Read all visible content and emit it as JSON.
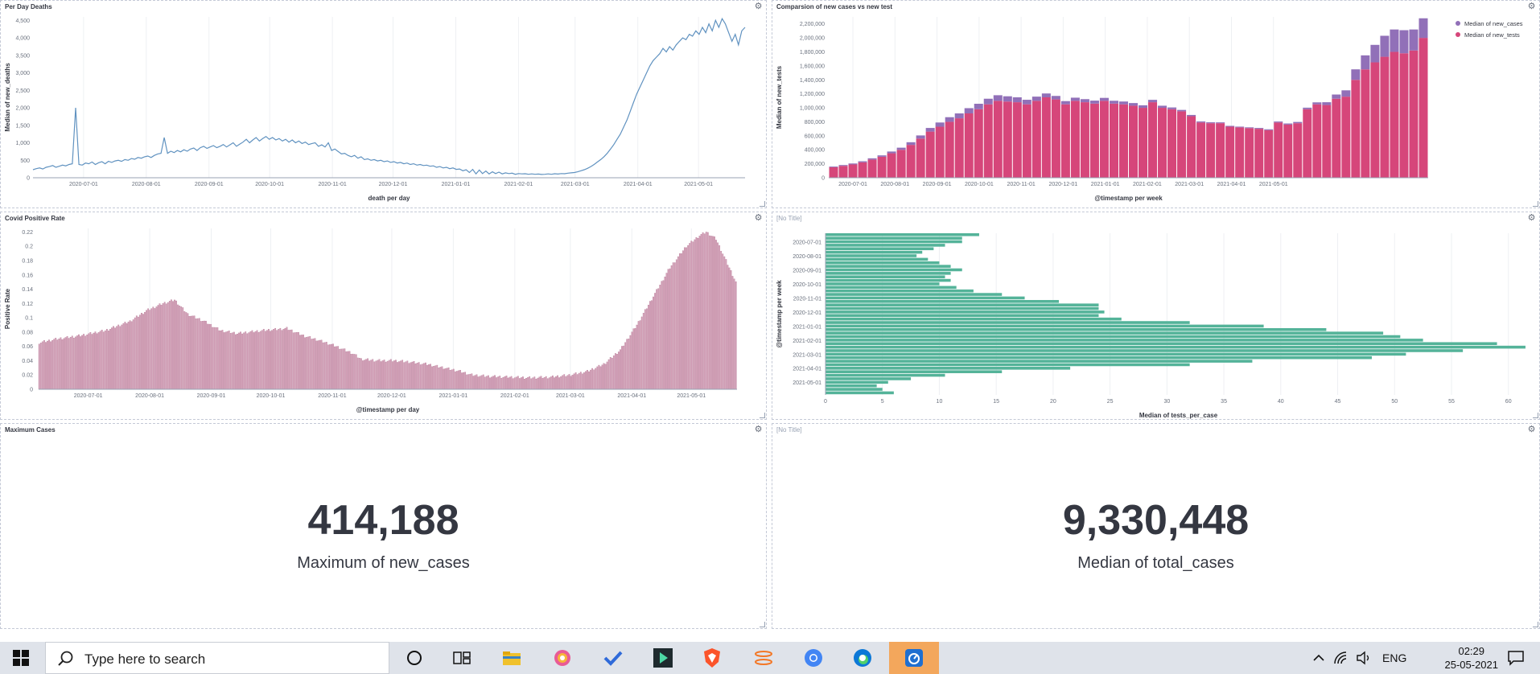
{
  "panels": {
    "deaths": {
      "title": "Per Day Deaths",
      "xlabel": "death per day",
      "ylabel": "Median of new_deaths"
    },
    "cases_tests": {
      "title": "Comparsion of new cases vs new test",
      "xlabel": "@timestamp per week",
      "ylabel": "Median of new_tests",
      "legend": [
        "Median of new_cases",
        "Median of new_tests"
      ]
    },
    "positive_rate": {
      "title": "Covid Positive Rate",
      "xlabel": "@timestamp per day",
      "ylabel": "Positive Rate"
    },
    "tests_per_case": {
      "title": "[No Title]",
      "xlabel": "Median of tests_per_case",
      "ylabel": "@timestamp per week"
    },
    "max_cases": {
      "title": "Maximum Cases",
      "value": "414,188",
      "label": "Maximum of new_cases"
    },
    "median_total": {
      "title": "[No Title]",
      "value": "9,330,448",
      "label": "Median of total_cases"
    }
  },
  "colors": {
    "line": "#6092c0",
    "tests": "#d6467a",
    "cases": "#9170b8",
    "rate": "#d4a0b8",
    "hbar": "#54b399",
    "grid": "#eef0f3"
  },
  "chart_data": [
    {
      "id": "deaths",
      "type": "line",
      "title": "Per Day Deaths",
      "xlabel": "death per day",
      "ylabel": "Median of new_deaths",
      "xticks": [
        "2020-07-01",
        "2020-08-01",
        "2020-09-01",
        "2020-10-01",
        "2020-11-01",
        "2020-12-01",
        "2021-01-01",
        "2021-02-01",
        "2021-03-01",
        "2021-04-01",
        "2021-05-01"
      ],
      "yticks": [
        "0",
        "500",
        "1,000",
        "1,500",
        "2,000",
        "2,500",
        "3,000",
        "3,500",
        "4,000",
        "4,500"
      ],
      "ylim": [
        0,
        4600
      ],
      "x_start": "2020-06-06",
      "x_end": "2021-05-24",
      "series": [
        {
          "values": [
            230,
            260,
            280,
            250,
            300,
            320,
            350,
            300,
            330,
            360,
            340,
            380,
            400,
            2000,
            380,
            360,
            420,
            400,
            450,
            380,
            430,
            460,
            400,
            470,
            440,
            480,
            500,
            470,
            520,
            500,
            550,
            530,
            580,
            560,
            600,
            620,
            580,
            640,
            680,
            700,
            1150,
            700,
            760,
            720,
            780,
            740,
            800,
            760,
            820,
            850,
            780,
            860,
            900,
            840,
            880,
            920,
            860,
            900,
            950,
            880,
            940,
            1000,
            900,
            960,
            1020,
            1100,
            1000,
            1080,
            1150,
            1050,
            1120,
            1180,
            1100,
            1150,
            1080,
            1120,
            1050,
            1100,
            1020,
            1080,
            1000,
            1050,
            980,
            1020,
            950,
            980,
            1000,
            900,
            940,
            880,
            1000,
            780,
            820,
            750,
            680,
            700,
            640,
            600,
            640,
            560,
            600,
            520,
            540,
            500,
            520,
            480,
            500,
            460,
            480,
            440,
            460,
            420,
            440,
            400,
            420,
            380,
            400,
            360,
            380,
            350,
            360,
            330,
            340,
            300,
            320,
            280,
            300,
            260,
            280,
            240,
            250,
            200,
            230,
            150,
            240,
            110,
            220,
            120,
            190,
            110,
            170,
            120,
            160,
            110,
            140,
            120,
            130,
            100,
            120,
            110,
            115,
            100,
            110,
            100,
            105,
            95,
            100,
            110,
            100,
            115,
            105,
            120,
            115,
            130,
            140,
            150,
            170,
            200,
            230,
            270,
            320,
            380,
            450,
            520,
            600,
            700,
            820,
            950,
            1100,
            1250,
            1450,
            1650,
            1900,
            2150,
            2400,
            2600,
            2800,
            3000,
            3200,
            3350,
            3450,
            3550,
            3700,
            3600,
            3750,
            3650,
            3800,
            3900,
            4000,
            3950,
            4100,
            4050,
            4200,
            4100,
            4300,
            4150,
            4400,
            4200,
            4500,
            4300,
            4550,
            4400,
            4150,
            3900,
            4100,
            3800,
            4200,
            4300
          ]
        }
      ]
    },
    {
      "id": "cases_tests",
      "type": "bar",
      "stacked": true,
      "title": "Comparsion of new cases vs new test",
      "xlabel": "@timestamp per week",
      "ylabel": "Median of new_tests",
      "xticks": [
        "2020-07-01",
        "2020-08-01",
        "2020-09-01",
        "2020-10-01",
        "2020-11-01",
        "2020-12-01",
        "2021-01-01",
        "2021-02-01",
        "2021-03-01",
        "2021-04-01",
        "2021-05-01"
      ],
      "yticks": [
        "0",
        "200,000",
        "400,000",
        "600,000",
        "800,000",
        "1,000,000",
        "1,200,000",
        "1,400,000",
        "1,600,000",
        "1,800,000",
        "2,000,000",
        "2,200,000"
      ],
      "ylim": [
        0,
        2300000
      ],
      "legend": [
        "Median of new_cases",
        "Median of new_tests"
      ],
      "series": [
        {
          "name": "Median of new_tests",
          "values": [
            150000,
            170000,
            190000,
            220000,
            260000,
            300000,
            350000,
            400000,
            470000,
            560000,
            660000,
            730000,
            800000,
            850000,
            920000,
            980000,
            1050000,
            1100000,
            1090000,
            1080000,
            1050000,
            1100000,
            1150000,
            1120000,
            1050000,
            1100000,
            1080000,
            1060000,
            1100000,
            1060000,
            1050000,
            1030000,
            1000000,
            1080000,
            1000000,
            980000,
            950000,
            880000,
            790000,
            780000,
            780000,
            730000,
            720000,
            710000,
            700000,
            680000,
            790000,
            760000,
            780000,
            980000,
            1050000,
            1040000,
            1130000,
            1160000,
            1400000,
            1550000,
            1650000,
            1730000,
            1800000,
            1780000,
            1820000,
            2000000
          ]
        },
        {
          "name": "Median of new_cases",
          "values": [
            10000,
            12000,
            14000,
            16000,
            18000,
            20000,
            25000,
            30000,
            38000,
            45000,
            52000,
            60000,
            66000,
            70000,
            75000,
            78000,
            80000,
            80000,
            75000,
            70000,
            65000,
            60000,
            55000,
            50000,
            46000,
            45000,
            44000,
            43000,
            42000,
            41000,
            40000,
            38000,
            36000,
            34000,
            30000,
            25000,
            20000,
            18000,
            15000,
            13000,
            12000,
            12000,
            11000,
            11000,
            12000,
            13000,
            14000,
            16000,
            18000,
            22000,
            28000,
            40000,
            60000,
            90000,
            150000,
            200000,
            250000,
            300000,
            320000,
            330000,
            300000,
            280000
          ]
        }
      ]
    },
    {
      "id": "positive_rate",
      "type": "bar",
      "title": "Covid Positive Rate",
      "xlabel": "@timestamp per day",
      "ylabel": "Positive Rate",
      "xticks": [
        "2020-07-01",
        "2020-08-01",
        "2020-09-01",
        "2020-10-01",
        "2020-11-01",
        "2020-12-01",
        "2021-01-01",
        "2021-02-01",
        "2021-03-01",
        "2021-04-01",
        "2021-05-01"
      ],
      "yticks": [
        "0",
        "0.02",
        "0.04",
        "0.06",
        "0.08",
        "0.1",
        "0.12",
        "0.14",
        "0.16",
        "0.18",
        "0.2",
        "0.22"
      ],
      "ylim": [
        0,
        0.225
      ],
      "x_start": "2020-06-06",
      "x_end": "2021-05-24",
      "anchors": [
        [
          0,
          0.065
        ],
        [
          10,
          0.07
        ],
        [
          25,
          0.075
        ],
        [
          40,
          0.082
        ],
        [
          55,
          0.095
        ],
        [
          65,
          0.11
        ],
        [
          75,
          0.12
        ],
        [
          82,
          0.125
        ],
        [
          90,
          0.105
        ],
        [
          100,
          0.095
        ],
        [
          110,
          0.082
        ],
        [
          120,
          0.078
        ],
        [
          135,
          0.082
        ],
        [
          150,
          0.085
        ],
        [
          160,
          0.075
        ],
        [
          170,
          0.068
        ],
        [
          180,
          0.06
        ],
        [
          190,
          0.05
        ],
        [
          195,
          0.042
        ],
        [
          205,
          0.04
        ],
        [
          215,
          0.04
        ],
        [
          225,
          0.038
        ],
        [
          235,
          0.035
        ],
        [
          245,
          0.03
        ],
        [
          255,
          0.025
        ],
        [
          262,
          0.02
        ],
        [
          272,
          0.018
        ],
        [
          285,
          0.017
        ],
        [
          297,
          0.016
        ],
        [
          310,
          0.017
        ],
        [
          322,
          0.02
        ],
        [
          332,
          0.025
        ],
        [
          342,
          0.035
        ],
        [
          352,
          0.055
        ],
        [
          362,
          0.09
        ],
        [
          372,
          0.13
        ],
        [
          382,
          0.17
        ],
        [
          392,
          0.2
        ],
        [
          400,
          0.215
        ],
        [
          404,
          0.22
        ],
        [
          410,
          0.21
        ],
        [
          416,
          0.18
        ],
        [
          422,
          0.15
        ]
      ]
    },
    {
      "id": "tests_per_case",
      "type": "bar",
      "orientation": "horizontal",
      "xlabel": "Median of tests_per_case",
      "ylabel": "@timestamp per week",
      "xticks": [
        "0",
        "5",
        "10",
        "15",
        "20",
        "25",
        "30",
        "35",
        "40",
        "45",
        "50",
        "55",
        "60"
      ],
      "xlim": [
        0,
        62
      ],
      "yticks": [
        [
          "2020-07-01",
          2
        ],
        [
          "2020-08-01",
          6
        ],
        [
          "2020-09-01",
          10
        ],
        [
          "2020-10-01",
          14
        ],
        [
          "2020-11-01",
          18
        ],
        [
          "2020-12-01",
          22
        ],
        [
          "2021-01-01",
          26
        ],
        [
          "2021-02-01",
          30
        ],
        [
          "2021-03-01",
          34
        ],
        [
          "2021-04-01",
          38
        ],
        [
          "2021-05-01",
          42
        ]
      ],
      "values": [
        13.5,
        12.0,
        12.0,
        10.5,
        9.5,
        8.5,
        8.0,
        9.0,
        10.0,
        11.0,
        12.0,
        11.0,
        10.5,
        11.0,
        10.0,
        11.5,
        13.0,
        15.5,
        17.5,
        20.5,
        24.0,
        24.0,
        24.5,
        24.0,
        26.0,
        32.0,
        38.5,
        44.0,
        49.0,
        50.5,
        52.5,
        59.0,
        61.5,
        56.0,
        51.0,
        48.0,
        37.5,
        32.0,
        21.5,
        15.5,
        10.5,
        7.5,
        5.5,
        4.5,
        5.0,
        6.0
      ]
    }
  ],
  "taskbar": {
    "search_placeholder": "Type here to search",
    "lang": "ENG",
    "time": "02:29",
    "date": "25-05-2021"
  }
}
